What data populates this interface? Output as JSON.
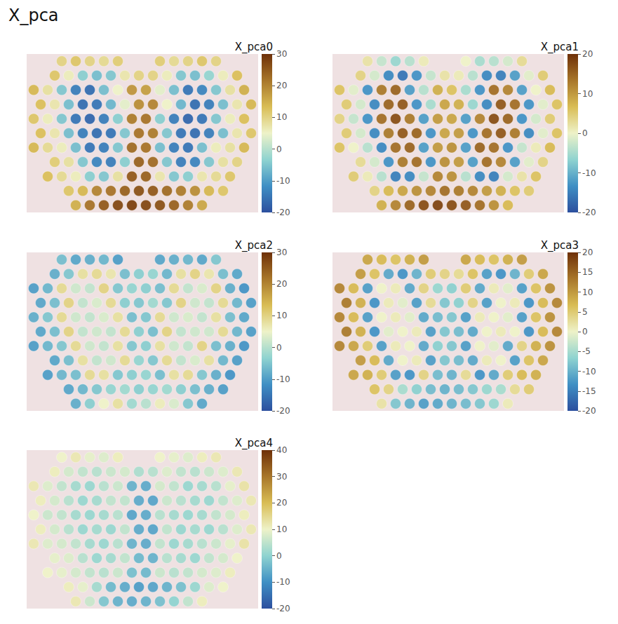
{
  "chart_data": {
    "type": "spatial_scatter",
    "title": "X_pca",
    "tick_labels": false,
    "panels": [
      {
        "title": "X_pca0",
        "colorbar": {
          "range": [
            -20,
            30
          ],
          "ticks": [
            -20,
            -10,
            0,
            10,
            20,
            30
          ]
        },
        "values": [
          [
            null,
            null,
            10,
            12,
            10,
            9,
            11,
            null,
            null,
            11,
            9,
            10,
            12,
            10,
            null,
            null
          ],
          [
            null,
            12,
            6,
            -4,
            -6,
            -5,
            7,
            10,
            10,
            6,
            -5,
            -6,
            -3,
            6,
            13,
            null
          ],
          [
            14,
            8,
            -5,
            -14,
            -16,
            -6,
            5,
            18,
            17,
            4,
            -6,
            -15,
            -13,
            -5,
            8,
            15
          ],
          [
            13,
            7,
            -6,
            -16,
            -15,
            -7,
            4,
            19,
            20,
            5,
            -7,
            -16,
            -14,
            -6,
            7,
            14
          ],
          [
            12,
            6,
            -5,
            -15,
            -17,
            -14,
            -4,
            21,
            22,
            -4,
            -14,
            -17,
            -15,
            -5,
            6,
            13
          ],
          [
            13,
            7,
            -6,
            -14,
            -16,
            -15,
            -5,
            22,
            21,
            -5,
            -15,
            -16,
            -14,
            -6,
            7,
            12
          ],
          [
            14,
            9,
            6,
            -6,
            -15,
            -14,
            -5,
            23,
            22,
            -6,
            -14,
            -15,
            -6,
            6,
            8,
            14
          ],
          [
            null,
            11,
            8,
            -5,
            -13,
            -14,
            -4,
            24,
            23,
            -5,
            -14,
            -13,
            -5,
            8,
            10,
            null
          ],
          [
            null,
            13,
            9,
            6,
            -4,
            -5,
            8,
            25,
            24,
            7,
            -5,
            -4,
            7,
            9,
            12,
            null
          ],
          [
            null,
            null,
            12,
            14,
            20,
            22,
            24,
            26,
            25,
            23,
            21,
            19,
            14,
            12,
            null,
            null
          ],
          [
            null,
            null,
            null,
            15,
            22,
            25,
            27,
            28,
            27,
            26,
            24,
            21,
            16,
            null,
            null,
            null
          ]
        ]
      },
      {
        "title": "X_pca1",
        "colorbar": {
          "range": [
            -20,
            20
          ],
          "ticks": [
            -20,
            -10,
            0,
            10,
            20
          ]
        },
        "values": [
          [
            null,
            null,
            2,
            -3,
            -6,
            -4,
            1,
            null,
            null,
            0,
            -5,
            -4,
            -2,
            3,
            null,
            null
          ],
          [
            null,
            4,
            -2,
            -14,
            -16,
            -13,
            -3,
            2,
            1,
            -4,
            -14,
            -15,
            -12,
            -1,
            5,
            null
          ],
          [
            6,
            -1,
            -13,
            13,
            15,
            -12,
            -4,
            8,
            6,
            -5,
            -13,
            14,
            12,
            -12,
            0,
            7
          ],
          [
            5,
            -2,
            -14,
            15,
            16,
            -13,
            -5,
            9,
            8,
            -6,
            -14,
            16,
            14,
            -13,
            -1,
            6
          ],
          [
            4,
            -3,
            -13,
            14,
            17,
            13,
            -12,
            10,
            9,
            -12,
            12,
            17,
            15,
            -13,
            -2,
            5
          ],
          [
            5,
            -2,
            -14,
            13,
            16,
            15,
            -13,
            9,
            10,
            -13,
            14,
            16,
            13,
            -14,
            -1,
            6
          ],
          [
            6,
            0,
            -4,
            -14,
            14,
            15,
            -12,
            10,
            11,
            -12,
            15,
            14,
            -13,
            -3,
            1,
            7
          ],
          [
            null,
            3,
            -2,
            -13,
            13,
            14,
            -13,
            11,
            10,
            -12,
            14,
            12,
            -12,
            -1,
            4,
            null
          ],
          [
            null,
            5,
            1,
            -4,
            -15,
            -14,
            -3,
            12,
            11,
            -4,
            -14,
            -15,
            -2,
            2,
            6,
            null
          ],
          [
            null,
            null,
            4,
            7,
            9,
            11,
            12,
            14,
            13,
            12,
            10,
            8,
            6,
            5,
            null,
            null
          ],
          [
            null,
            null,
            null,
            8,
            12,
            15,
            17,
            18,
            17,
            16,
            14,
            11,
            7,
            null,
            null,
            null
          ]
        ]
      },
      {
        "title": "X_pca2",
        "colorbar": {
          "range": [
            -20,
            30
          ],
          "ticks": [
            -20,
            -10,
            0,
            10,
            20,
            30
          ]
        },
        "values": [
          [
            null,
            null,
            -6,
            -9,
            -8,
            -7,
            -10,
            null,
            null,
            -9,
            -8,
            -7,
            -9,
            -5,
            null,
            null
          ],
          [
            null,
            -8,
            -5,
            8,
            9,
            7,
            -6,
            -4,
            -3,
            -7,
            8,
            10,
            7,
            -6,
            -9,
            null
          ],
          [
            -10,
            -7,
            9,
            2,
            1,
            10,
            -5,
            -3,
            -4,
            -6,
            9,
            1,
            3,
            10,
            -8,
            -11
          ],
          [
            -9,
            -6,
            10,
            1,
            3,
            9,
            -4,
            -5,
            -2,
            -5,
            10,
            2,
            1,
            9,
            -7,
            -10
          ],
          [
            -8,
            -5,
            9,
            2,
            1,
            3,
            8,
            -6,
            -5,
            9,
            2,
            3,
            1,
            8,
            -6,
            -9
          ],
          [
            -9,
            -6,
            10,
            1,
            2,
            1,
            9,
            -4,
            -6,
            10,
            1,
            2,
            2,
            9,
            -7,
            -10
          ],
          [
            -10,
            -7,
            -5,
            9,
            2,
            1,
            8,
            -5,
            -4,
            8,
            2,
            1,
            10,
            -6,
            -8,
            -11
          ],
          [
            null,
            -9,
            -6,
            8,
            1,
            2,
            9,
            -3,
            -5,
            9,
            1,
            3,
            8,
            -7,
            -10,
            null
          ],
          [
            null,
            -10,
            -7,
            -6,
            9,
            8,
            -5,
            -4,
            -3,
            -6,
            8,
            9,
            -5,
            -8,
            -11,
            null
          ],
          [
            null,
            null,
            -9,
            -7,
            -5,
            -3,
            -2,
            -4,
            -3,
            -2,
            -4,
            -6,
            -8,
            -10,
            null,
            null
          ],
          [
            null,
            null,
            null,
            -8,
            -4,
            5,
            8,
            -2,
            0,
            6,
            3,
            -5,
            -9,
            null,
            null,
            null
          ]
        ]
      },
      {
        "title": "X_pca3",
        "colorbar": {
          "range": [
            -20,
            20
          ],
          "ticks": [
            -20,
            -15,
            -10,
            -5,
            0,
            5,
            10,
            15,
            20
          ]
        },
        "values": [
          [
            null,
            null,
            9,
            7,
            6,
            8,
            10,
            null,
            null,
            9,
            7,
            6,
            8,
            10,
            null,
            null
          ],
          [
            null,
            10,
            6,
            -11,
            -13,
            -10,
            5,
            4,
            3,
            6,
            -12,
            -13,
            -10,
            5,
            9,
            null
          ],
          [
            12,
            7,
            -12,
            0,
            1,
            -11,
            4,
            -6,
            -7,
            5,
            -11,
            1,
            -1,
            -12,
            6,
            11
          ],
          [
            13,
            8,
            -13,
            1,
            -1,
            -12,
            3,
            -8,
            -7,
            4,
            -12,
            0,
            1,
            -13,
            7,
            12
          ],
          [
            12,
            7,
            -12,
            0,
            1,
            -1,
            -11,
            -9,
            -8,
            -12,
            1,
            0,
            -1,
            -12,
            6,
            11
          ],
          [
            13,
            8,
            -13,
            -1,
            0,
            1,
            -12,
            -8,
            -9,
            -11,
            0,
            1,
            0,
            -13,
            7,
            12
          ],
          [
            12,
            9,
            5,
            -12,
            1,
            0,
            -11,
            -7,
            -8,
            -12,
            0,
            -1,
            -11,
            4,
            8,
            11
          ],
          [
            null,
            10,
            7,
            -11,
            0,
            1,
            -12,
            -8,
            -9,
            -11,
            1,
            0,
            -12,
            6,
            9,
            null
          ],
          [
            null,
            9,
            8,
            5,
            -12,
            -13,
            4,
            -9,
            -10,
            3,
            -13,
            -11,
            5,
            7,
            8,
            null
          ],
          [
            null,
            null,
            6,
            4,
            -5,
            -7,
            -9,
            -10,
            -9,
            -8,
            -6,
            -5,
            3,
            5,
            null,
            null
          ],
          [
            null,
            null,
            null,
            2,
            -8,
            -10,
            -12,
            -11,
            -10,
            -9,
            -8,
            -6,
            1,
            null,
            null,
            null
          ]
        ]
      },
      {
        "title": "X_pca4",
        "colorbar": {
          "range": [
            -20,
            40
          ],
          "ticks": [
            -20,
            -10,
            0,
            10,
            20,
            30,
            40
          ]
        },
        "values": [
          [
            null,
            null,
            10,
            12,
            9,
            8,
            11,
            null,
            null,
            10,
            9,
            8,
            11,
            12,
            null,
            null
          ],
          [
            null,
            11,
            7,
            5,
            4,
            6,
            7,
            3,
            4,
            8,
            5,
            4,
            6,
            8,
            12,
            null
          ],
          [
            12,
            8,
            5,
            2,
            1,
            4,
            6,
            -5,
            -6,
            7,
            5,
            1,
            2,
            4,
            9,
            13
          ],
          [
            11,
            7,
            4,
            1,
            2,
            5,
            5,
            -6,
            -7,
            6,
            4,
            2,
            1,
            5,
            8,
            12
          ],
          [
            10,
            6,
            5,
            2,
            1,
            2,
            4,
            -7,
            -6,
            4,
            2,
            1,
            2,
            5,
            7,
            11
          ],
          [
            11,
            7,
            4,
            1,
            2,
            1,
            5,
            -6,
            -7,
            5,
            1,
            2,
            1,
            4,
            8,
            12
          ],
          [
            12,
            8,
            7,
            5,
            2,
            1,
            4,
            -5,
            -6,
            5,
            1,
            2,
            4,
            6,
            9,
            13
          ],
          [
            null,
            9,
            8,
            4,
            1,
            2,
            5,
            -4,
            -5,
            4,
            2,
            1,
            5,
            7,
            10,
            null
          ],
          [
            null,
            10,
            9,
            7,
            5,
            4,
            6,
            -3,
            -4,
            6,
            4,
            5,
            7,
            8,
            11,
            null
          ],
          [
            null,
            null,
            11,
            9,
            2,
            -4,
            -6,
            -8,
            -7,
            -5,
            -3,
            1,
            8,
            10,
            null,
            null
          ],
          [
            null,
            null,
            null,
            12,
            6,
            -2,
            -5,
            -6,
            -5,
            -3,
            0,
            5,
            11,
            null,
            null,
            null
          ]
        ]
      }
    ]
  }
}
